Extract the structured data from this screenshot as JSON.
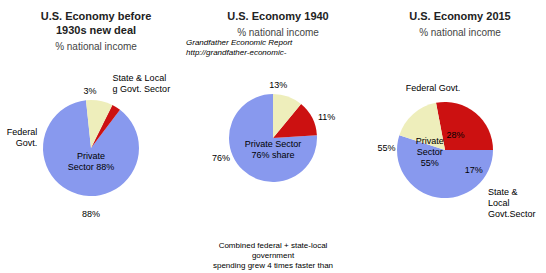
{
  "chart_data": [
    {
      "type": "pie",
      "title": "U.S. Economy before\n1930s new deal",
      "subtitle": "% national income",
      "values": [
        88,
        3,
        9
      ],
      "colors": [
        "#8899ee",
        "#cc1111",
        "#eeeebb"
      ],
      "annotations": [
        "Private\nSector 88%",
        "88%",
        "Federal\nGovt.",
        "3%",
        "State & Local\ng Govt. Sector"
      ]
    },
    {
      "type": "pie",
      "title": "U.S. Economy 1940",
      "subtitle": "% national income",
      "values": [
        76,
        13,
        11
      ],
      "colors": [
        "#8899ee",
        "#cc1111",
        "#eeeebb"
      ],
      "annotations": [
        "Private Sector\n76% share",
        "76%",
        "13%",
        "11%",
        "Grandfather Economic Report",
        "http://grandfather-economic-",
        "Combined federal + state-local\ngovernment\nspending grew 4 times faster than"
      ]
    },
    {
      "type": "pie",
      "title": "U.S. Economy 2015",
      "subtitle": "% national income",
      "values": [
        55,
        28,
        17
      ],
      "colors": [
        "#8899ee",
        "#cc1111",
        "#eeeebb"
      ],
      "annotations": [
        "Private\nSector\n55%",
        "28%",
        "17%",
        "55%",
        "Federal Govt.",
        "State &\nLocal\nGovt.Sector"
      ]
    }
  ]
}
